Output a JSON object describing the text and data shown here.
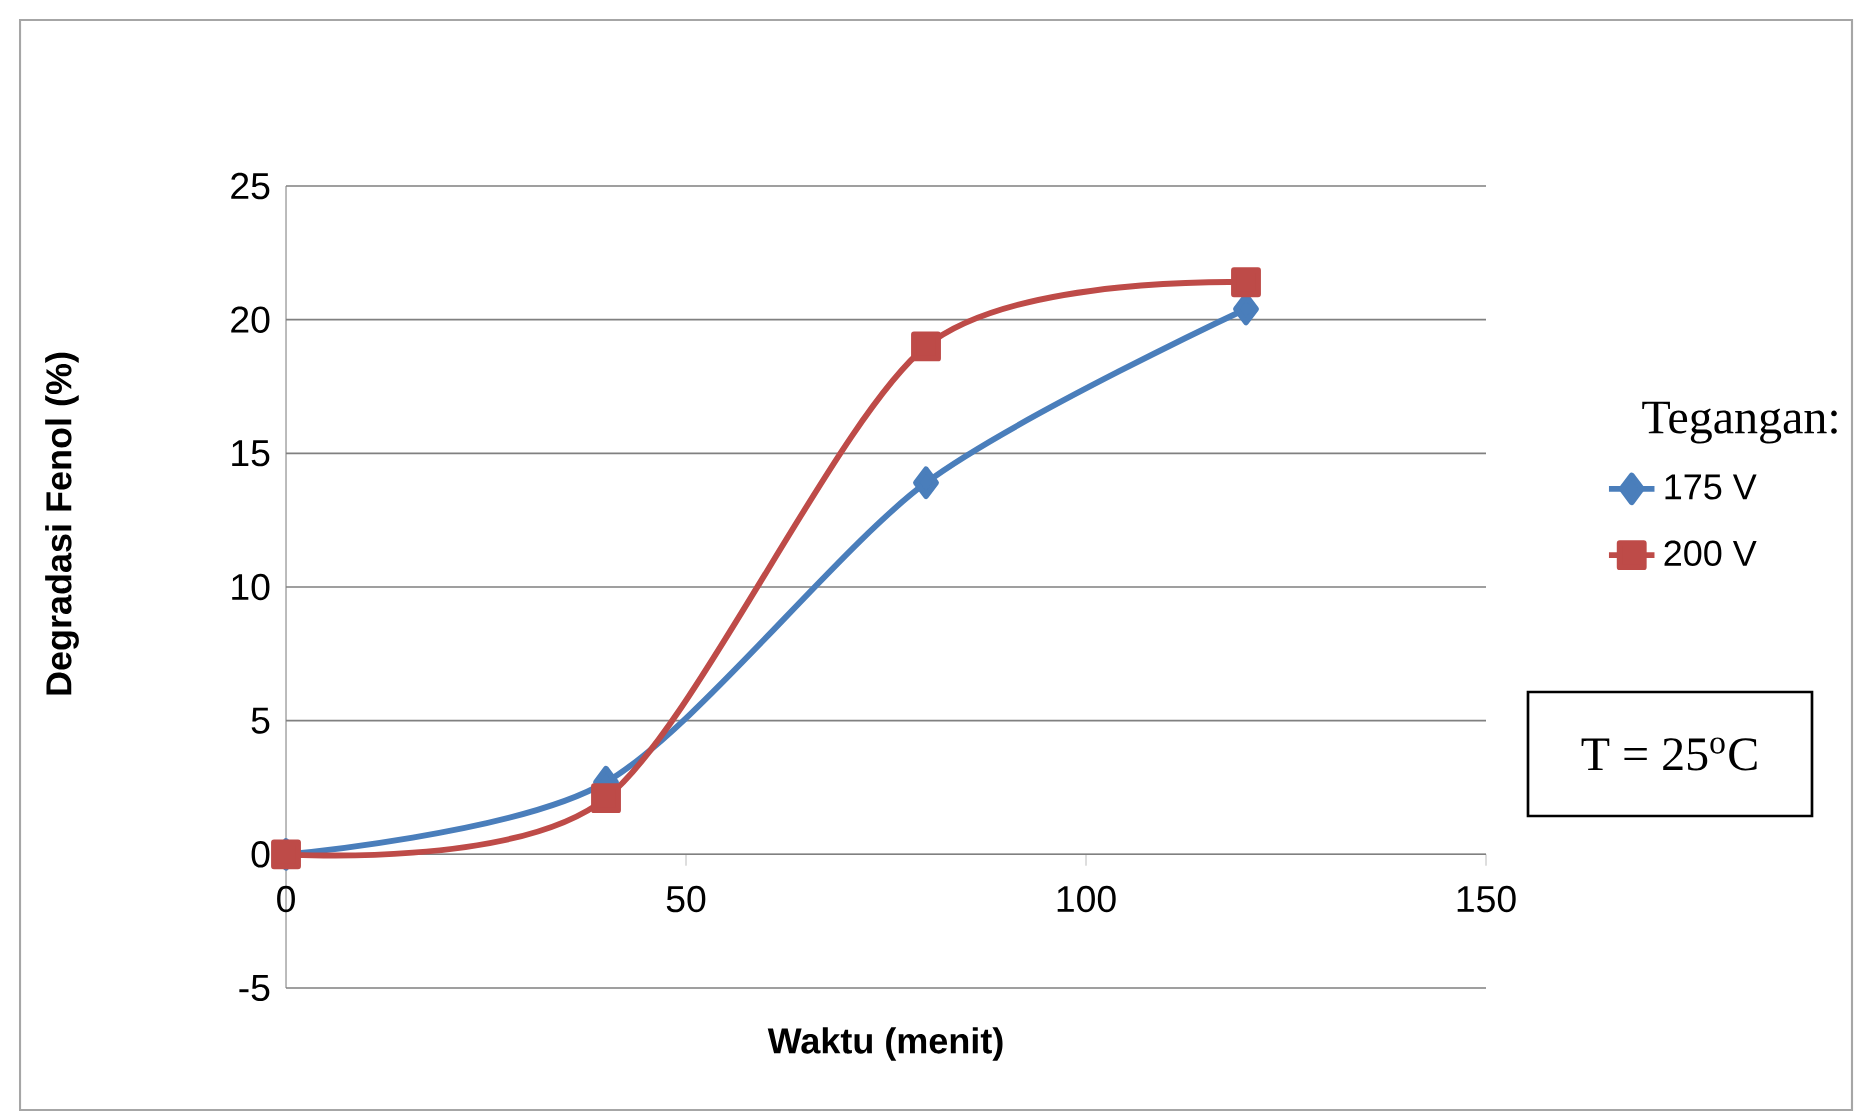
{
  "chart_data": {
    "type": "line",
    "xlabel": "Waktu (menit)",
    "ylabel": "Degradasi Fenol (%)",
    "legend_title": "Tegangan:",
    "x": [
      0,
      40,
      80,
      120
    ],
    "series": [
      {
        "name": "175 V",
        "color": "#4a7ebb",
        "marker": "diamond",
        "values": [
          0,
          2.7,
          13.9,
          20.4
        ]
      },
      {
        "name": "200 V",
        "color": "#be4b48",
        "marker": "square",
        "values": [
          0,
          2.1,
          19.0,
          21.4
        ]
      }
    ],
    "xlim": [
      0,
      150
    ],
    "xticks": [
      0,
      50,
      100,
      150
    ],
    "ylim": [
      -5,
      25
    ],
    "yticks": [
      -5,
      0,
      5,
      10,
      15,
      20,
      25
    ],
    "grid": "y",
    "legend": "right",
    "line_style": "solid",
    "annotations": [
      "T = 25$^{o}$C"
    ]
  }
}
